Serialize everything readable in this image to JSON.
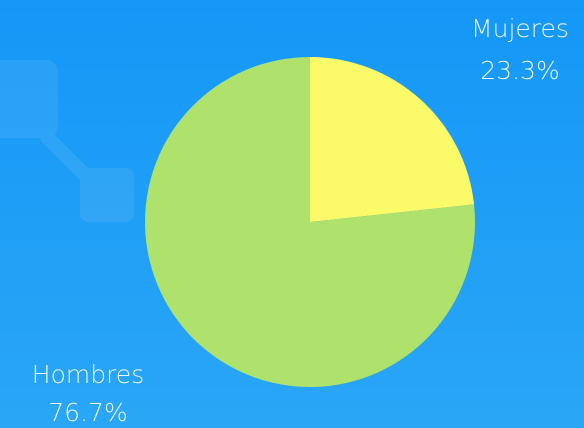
{
  "chart_data": {
    "type": "pie",
    "categories": [
      "Mujeres",
      "Hombres"
    ],
    "values": [
      23.3,
      76.7
    ],
    "value_labels": [
      "23.3%",
      "76.7%"
    ],
    "colors": [
      "#fbfb6a",
      "#aee26c"
    ]
  }
}
